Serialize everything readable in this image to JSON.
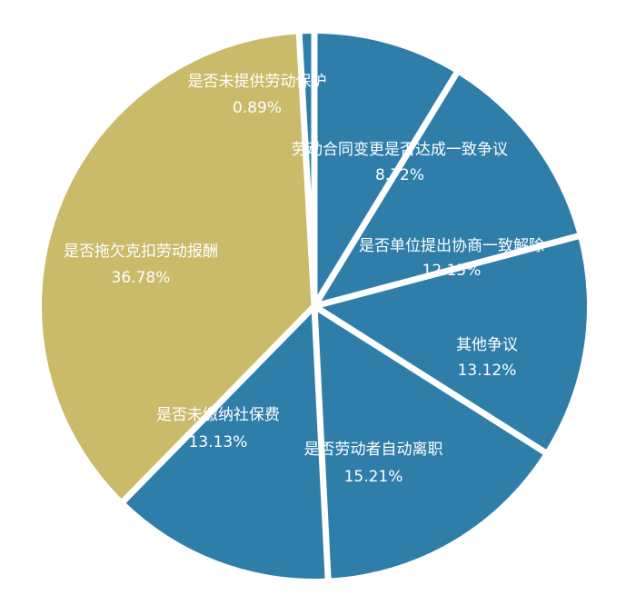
{
  "chart_data": {
    "type": "pie",
    "slices": [
      {
        "label": "劳动合同变更是否达成一致争议",
        "value": 8.72,
        "display": "8.72%",
        "color": "#2e7ea9"
      },
      {
        "label": "是否单位提出协商一致解除",
        "value": 12.15,
        "display": "12.15%",
        "color": "#2e7ea9"
      },
      {
        "label": "其他争议",
        "value": 13.12,
        "display": "13.12%",
        "color": "#2e7ea9"
      },
      {
        "label": "是否劳动者自动离职",
        "value": 15.21,
        "display": "15.21%",
        "color": "#2e7ea9"
      },
      {
        "label": "是否未缴纳社保费",
        "value": 13.13,
        "display": "13.13%",
        "color": "#2e7ea9"
      },
      {
        "label": "是否拖欠克扣劳动报酬",
        "value": 36.78,
        "display": "36.78%",
        "color": "#c9bb6a"
      },
      {
        "label": "是否未提供劳动保护",
        "value": 0.89,
        "display": "0.89%",
        "color": "#2e7ea9"
      }
    ],
    "start_angle_deg": 0,
    "direction": "clockwise",
    "legend": "none",
    "separator_color": "#ffffff"
  }
}
